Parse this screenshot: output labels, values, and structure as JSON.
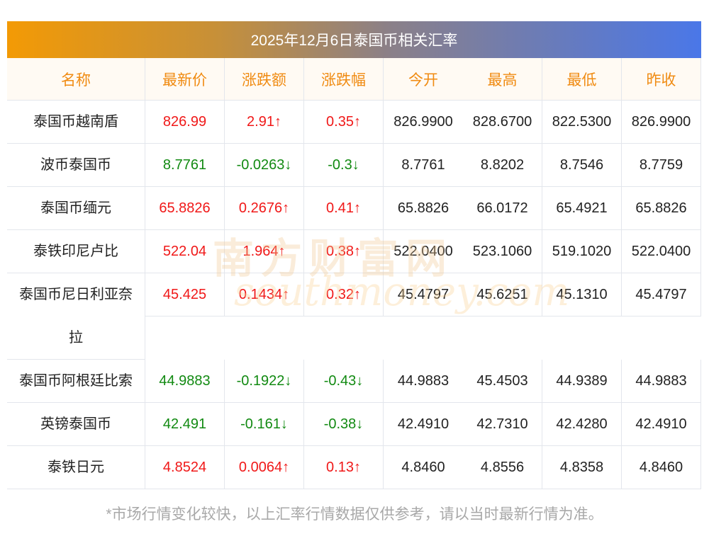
{
  "title": "2025年12月6日泰国币相关汇率",
  "headers": [
    "名称",
    "最新价",
    "涨跌额",
    "涨跌幅",
    "今开",
    "最高",
    "最低",
    "昨收"
  ],
  "rows": [
    {
      "name": "泰国币越南盾",
      "dir": "up",
      "price": "826.99",
      "chg": "2.91↑",
      "pct": "0.35↑",
      "open": "826.9900",
      "high": "828.6700",
      "low": "822.5300",
      "prev": "826.9900"
    },
    {
      "name": "波币泰国币",
      "dir": "down",
      "price": "8.7761",
      "chg": "-0.0263↓",
      "pct": "-0.3↓",
      "open": "8.7761",
      "high": "8.8202",
      "low": "8.7546",
      "prev": "8.7759"
    },
    {
      "name": "泰国币缅元",
      "dir": "up",
      "price": "65.8826",
      "chg": "0.2676↑",
      "pct": "0.41↑",
      "open": "65.8826",
      "high": "66.0172",
      "low": "65.4921",
      "prev": "65.8826"
    },
    {
      "name": "泰铁印尼卢比",
      "dir": "up",
      "price": "522.04",
      "chg": "1.964↑",
      "pct": "0.38↑",
      "open": "522.0400",
      "high": "523.1060",
      "low": "519.1020",
      "prev": "522.0400"
    },
    {
      "name": "泰国币尼日利亚奈拉",
      "dir": "up",
      "price": "45.425",
      "chg": "0.1434↑",
      "pct": "0.32↑",
      "open": "45.4797",
      "high": "45.6251",
      "low": "45.1310",
      "prev": "45.4797",
      "wrap": true
    },
    {
      "name": "泰国币阿根廷比索",
      "dir": "down",
      "price": "44.9883",
      "chg": "-0.1922↓",
      "pct": "-0.43↓",
      "open": "44.9883",
      "high": "45.4503",
      "low": "44.9389",
      "prev": "44.9883"
    },
    {
      "name": "英镑泰国币",
      "dir": "down",
      "price": "42.491",
      "chg": "-0.161↓",
      "pct": "-0.38↓",
      "open": "42.4910",
      "high": "42.7310",
      "low": "42.4280",
      "prev": "42.4910"
    },
    {
      "name": "泰铁日元",
      "dir": "up",
      "price": "4.8524",
      "chg": "0.0064↑",
      "pct": "0.13↑",
      "open": "4.8460",
      "high": "4.8556",
      "low": "4.8358",
      "prev": "4.8460"
    }
  ],
  "watermark": {
    "cn": "南方财富网",
    "en": "southmoney.com"
  },
  "colors": {
    "up": "#f01818",
    "down": "#128a12",
    "header_text": "#f08b12"
  },
  "footnote": "*市场行情变化较快，以上汇率行情数据仅供参考，请以当时最新行情为准。"
}
